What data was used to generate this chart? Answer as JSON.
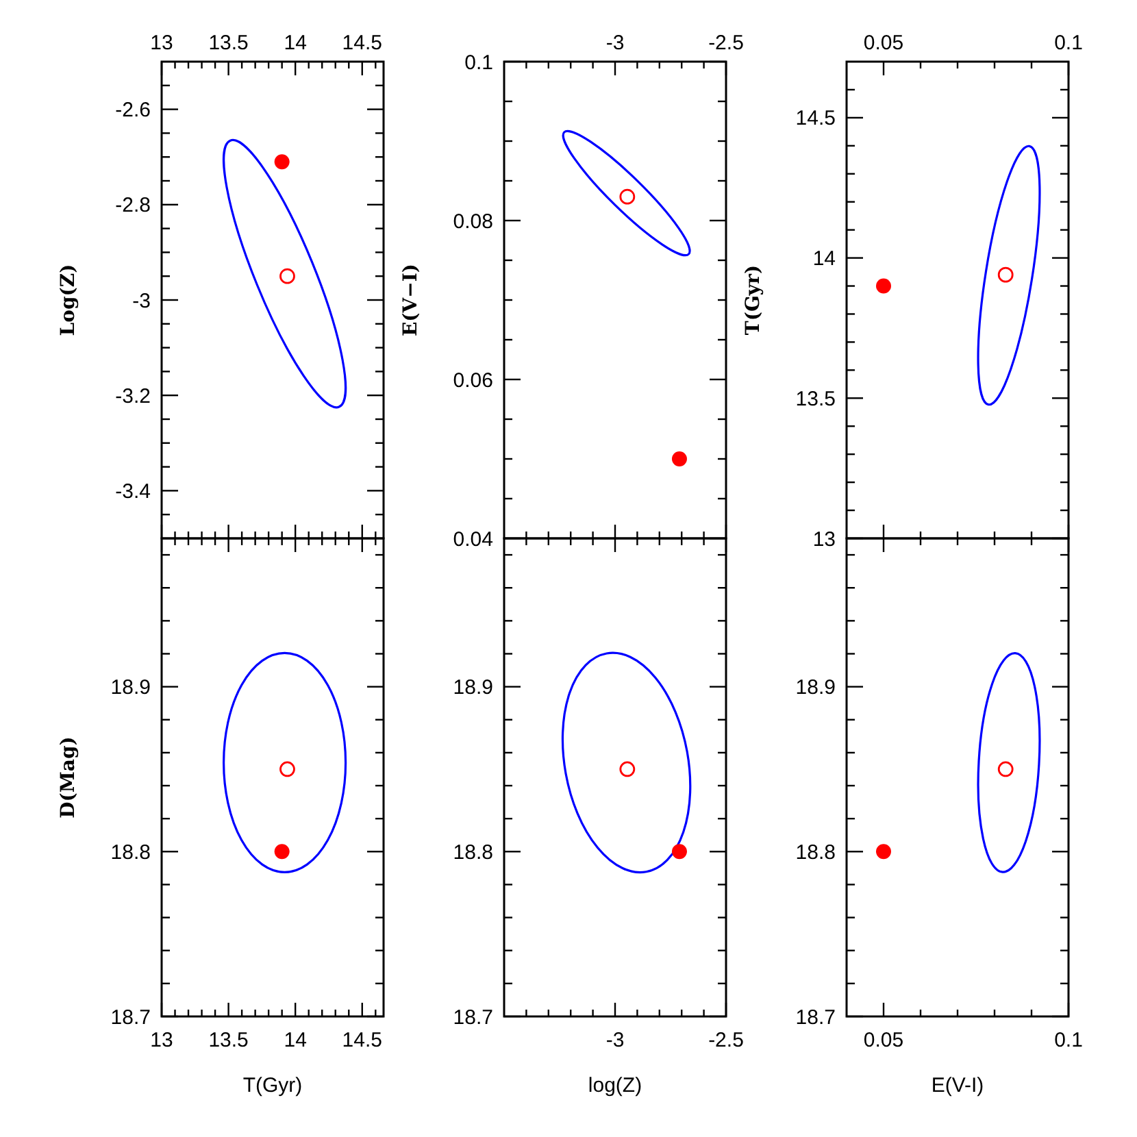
{
  "chart_data": [
    {
      "type": "scatter",
      "ylabel": "Log(Z)",
      "xlim": [
        13,
        14.66
      ],
      "ylim": [
        -3.5,
        -2.5
      ],
      "xticks": [
        13,
        {
          "value": 13.1,
          "label": null
        },
        {
          "value": 13.2,
          "label": null
        },
        {
          "value": 13.3,
          "label": null
        },
        {
          "value": 13.4,
          "label": null
        },
        13.5,
        {
          "value": 13.6,
          "label": null
        },
        {
          "value": 13.7,
          "label": null
        },
        {
          "value": 13.8,
          "label": null
        },
        {
          "value": 13.9,
          "label": null
        },
        14,
        {
          "value": 14.1,
          "label": null
        },
        {
          "value": 14.2,
          "label": null
        },
        {
          "value": 14.3,
          "label": null
        },
        {
          "value": 14.4,
          "label": null
        },
        14.5,
        {
          "value": 14.6,
          "label": null
        }
      ],
      "yticks": [
        {
          "value": -3.45,
          "label": null
        },
        -3.4,
        {
          "value": -3.35,
          "label": null
        },
        {
          "value": -3.3,
          "label": null
        },
        {
          "value": -3.25,
          "label": null
        },
        -3.2,
        {
          "value": -3.15,
          "label": null
        },
        {
          "value": -3.1,
          "label": null
        },
        {
          "value": -3.05,
          "label": null
        },
        -3,
        {
          "value": -2.95,
          "label": null
        },
        {
          "value": -2.9,
          "label": null
        },
        {
          "value": -2.85,
          "label": null
        },
        -2.8,
        {
          "value": -2.75,
          "label": null
        },
        {
          "value": -2.7,
          "label": null
        },
        {
          "value": -2.65,
          "label": null
        },
        -2.6,
        {
          "value": -2.55,
          "label": null
        }
      ],
      "series": [
        {
          "type": "scatter",
          "marker": "circle",
          "color": "#ff0000",
          "x": [
            13.9
          ],
          "values": [
            -2.71
          ]
        },
        {
          "type": "scatter",
          "marker": "circle",
          "color": "#ff0000",
          "x": [
            13.94
          ],
          "values": [
            -2.95
          ]
        }
      ]
    },
    {
      "type": "scatter",
      "ylabel": "E(V−I)",
      "xlim": [
        -3.5,
        -2.5
      ],
      "ylim": [
        0.04,
        0.1
      ],
      "xticks": [
        {
          "value": -3.4,
          "label": null
        },
        {
          "value": -3.3,
          "label": null
        },
        {
          "value": -3.2,
          "label": null
        },
        {
          "value": -3.1,
          "label": null
        },
        -3,
        {
          "value": -2.9,
          "label": null
        },
        {
          "value": -2.8,
          "label": null
        },
        {
          "value": -2.7,
          "label": null
        },
        {
          "value": -2.6,
          "label": null
        },
        -2.5
      ],
      "yticks": [
        0.04,
        {
          "value": 0.045,
          "label": null
        },
        {
          "value": 0.05,
          "label": null
        },
        {
          "value": 0.055,
          "label": null
        },
        0.06,
        {
          "value": 0.065,
          "label": null
        },
        {
          "value": 0.07,
          "label": null
        },
        {
          "value": 0.075,
          "label": null
        },
        0.08,
        {
          "value": 0.085,
          "label": null
        },
        {
          "value": 0.09,
          "label": null
        },
        {
          "value": 0.095,
          "label": null
        },
        0.1
      ],
      "series": [
        {
          "type": "scatter",
          "marker": "circle",
          "color": "#ff0000",
          "x": [
            -2.71
          ],
          "values": [
            0.05
          ]
        },
        {
          "type": "scatter",
          "marker": "circle",
          "color": "#ff0000",
          "x": [
            -2.945
          ],
          "values": [
            0.083
          ]
        }
      ]
    },
    {
      "type": "scatter",
      "ylabel": "T(Gyr)",
      "xlim": [
        0.04,
        0.1
      ],
      "ylim": [
        13,
        14.7
      ],
      "xticks": [
        0.05,
        {
          "value": 0.06,
          "label": null
        },
        {
          "value": 0.07,
          "label": null
        },
        {
          "value": 0.08,
          "label": null
        },
        {
          "value": 0.09,
          "label": null
        },
        0.1
      ],
      "yticks": [
        13,
        {
          "value": 13.1,
          "label": null
        },
        {
          "value": 13.2,
          "label": null
        },
        {
          "value": 13.3,
          "label": null
        },
        {
          "value": 13.4,
          "label": null
        },
        13.5,
        {
          "value": 13.6,
          "label": null
        },
        {
          "value": 13.7,
          "label": null
        },
        {
          "value": 13.8,
          "label": null
        },
        {
          "value": 13.9,
          "label": null
        },
        14,
        {
          "value": 14.1,
          "label": null
        },
        {
          "value": 14.2,
          "label": null
        },
        {
          "value": 14.3,
          "label": null
        },
        {
          "value": 14.4,
          "label": null
        },
        14.5,
        {
          "value": 14.6,
          "label": null
        }
      ],
      "series": [
        {
          "type": "scatter",
          "marker": "circle",
          "color": "#ff0000",
          "x": [
            0.05
          ],
          "values": [
            13.9
          ]
        },
        {
          "type": "scatter",
          "marker": "circle",
          "color": "#ff0000",
          "x": [
            0.083
          ],
          "values": [
            13.94
          ]
        }
      ]
    },
    {
      "type": "scatter",
      "xlabel": "T(Gyr)",
      "ylabel": "D(Mag)",
      "xlim": [
        13,
        14.66
      ],
      "ylim": [
        18.7,
        18.99
      ],
      "xticks": [
        13,
        {
          "value": 13.1,
          "label": null
        },
        {
          "value": 13.2,
          "label": null
        },
        {
          "value": 13.3,
          "label": null
        },
        {
          "value": 13.4,
          "label": null
        },
        13.5,
        {
          "value": 13.6,
          "label": null
        },
        {
          "value": 13.7,
          "label": null
        },
        {
          "value": 13.8,
          "label": null
        },
        {
          "value": 13.9,
          "label": null
        },
        14,
        {
          "value": 14.1,
          "label": null
        },
        {
          "value": 14.2,
          "label": null
        },
        {
          "value": 14.3,
          "label": null
        },
        {
          "value": 14.4,
          "label": null
        },
        14.5,
        {
          "value": 14.6,
          "label": null
        }
      ],
      "yticks": [
        18.7,
        {
          "value": 18.72,
          "label": null
        },
        {
          "value": 18.74,
          "label": null
        },
        {
          "value": 18.76,
          "label": null
        },
        {
          "value": 18.78,
          "label": null
        },
        18.8,
        {
          "value": 18.82,
          "label": null
        },
        {
          "value": 18.84,
          "label": null
        },
        {
          "value": 18.86,
          "label": null
        },
        {
          "value": 18.88,
          "label": null
        },
        18.9,
        {
          "value": 18.92,
          "label": null
        },
        {
          "value": 18.94,
          "label": null
        },
        {
          "value": 18.96,
          "label": null
        },
        {
          "value": 18.98,
          "label": null
        }
      ],
      "series": [
        {
          "type": "scatter",
          "marker": "circle",
          "color": "#ff0000",
          "x": [
            13.9
          ],
          "values": [
            18.8
          ]
        },
        {
          "type": "scatter",
          "marker": "circle",
          "color": "#ff0000",
          "x": [
            13.94
          ],
          "values": [
            18.85
          ]
        }
      ]
    },
    {
      "type": "scatter",
      "xlabel": "log(Z)",
      "xlim": [
        -3.5,
        -2.5
      ],
      "ylim": [
        18.7,
        18.99
      ],
      "xticks": [
        {
          "value": -3.4,
          "label": null
        },
        {
          "value": -3.3,
          "label": null
        },
        {
          "value": -3.2,
          "label": null
        },
        {
          "value": -3.1,
          "label": null
        },
        -3,
        {
          "value": -2.9,
          "label": null
        },
        {
          "value": -2.8,
          "label": null
        },
        {
          "value": -2.7,
          "label": null
        },
        {
          "value": -2.6,
          "label": null
        },
        -2.5
      ],
      "yticks": [
        18.7,
        {
          "value": 18.72,
          "label": null
        },
        {
          "value": 18.74,
          "label": null
        },
        {
          "value": 18.76,
          "label": null
        },
        {
          "value": 18.78,
          "label": null
        },
        18.8,
        {
          "value": 18.82,
          "label": null
        },
        {
          "value": 18.84,
          "label": null
        },
        {
          "value": 18.86,
          "label": null
        },
        {
          "value": 18.88,
          "label": null
        },
        18.9,
        {
          "value": 18.92,
          "label": null
        },
        {
          "value": 18.94,
          "label": null
        },
        {
          "value": 18.96,
          "label": null
        },
        {
          "value": 18.98,
          "label": null
        }
      ],
      "series": [
        {
          "type": "scatter",
          "marker": "circle",
          "color": "#ff0000",
          "x": [
            -2.71
          ],
          "values": [
            18.8
          ]
        },
        {
          "type": "scatter",
          "marker": "circle",
          "color": "#ff0000",
          "x": [
            -2.945
          ],
          "values": [
            18.85
          ]
        }
      ]
    },
    {
      "type": "scatter",
      "xlabel": "E(V-I)",
      "xlim": [
        0.04,
        0.1
      ],
      "ylim": [
        18.7,
        18.99
      ],
      "xticks": [
        0.05,
        {
          "value": 0.06,
          "label": null
        },
        {
          "value": 0.07,
          "label": null
        },
        {
          "value": 0.08,
          "label": null
        },
        {
          "value": 0.09,
          "label": null
        },
        0.1
      ],
      "yticks": [
        18.7,
        {
          "value": 18.72,
          "label": null
        },
        {
          "value": 18.74,
          "label": null
        },
        {
          "value": 18.76,
          "label": null
        },
        {
          "value": 18.78,
          "label": null
        },
        18.8,
        {
          "value": 18.82,
          "label": null
        },
        {
          "value": 18.84,
          "label": null
        },
        {
          "value": 18.86,
          "label": null
        },
        {
          "value": 18.88,
          "label": null
        },
        18.9,
        {
          "value": 18.92,
          "label": null
        },
        {
          "value": 18.94,
          "label": null
        },
        {
          "value": 18.96,
          "label": null
        },
        {
          "value": 18.98,
          "label": null
        }
      ],
      "series": [
        {
          "type": "scatter",
          "marker": "circle",
          "color": "#ff0000",
          "x": [
            0.05
          ],
          "values": [
            18.8
          ]
        },
        {
          "type": "scatter",
          "marker": "circle",
          "color": "#ff0000",
          "x": [
            0.083
          ],
          "values": [
            18.85
          ]
        }
      ]
    }
  ]
}
